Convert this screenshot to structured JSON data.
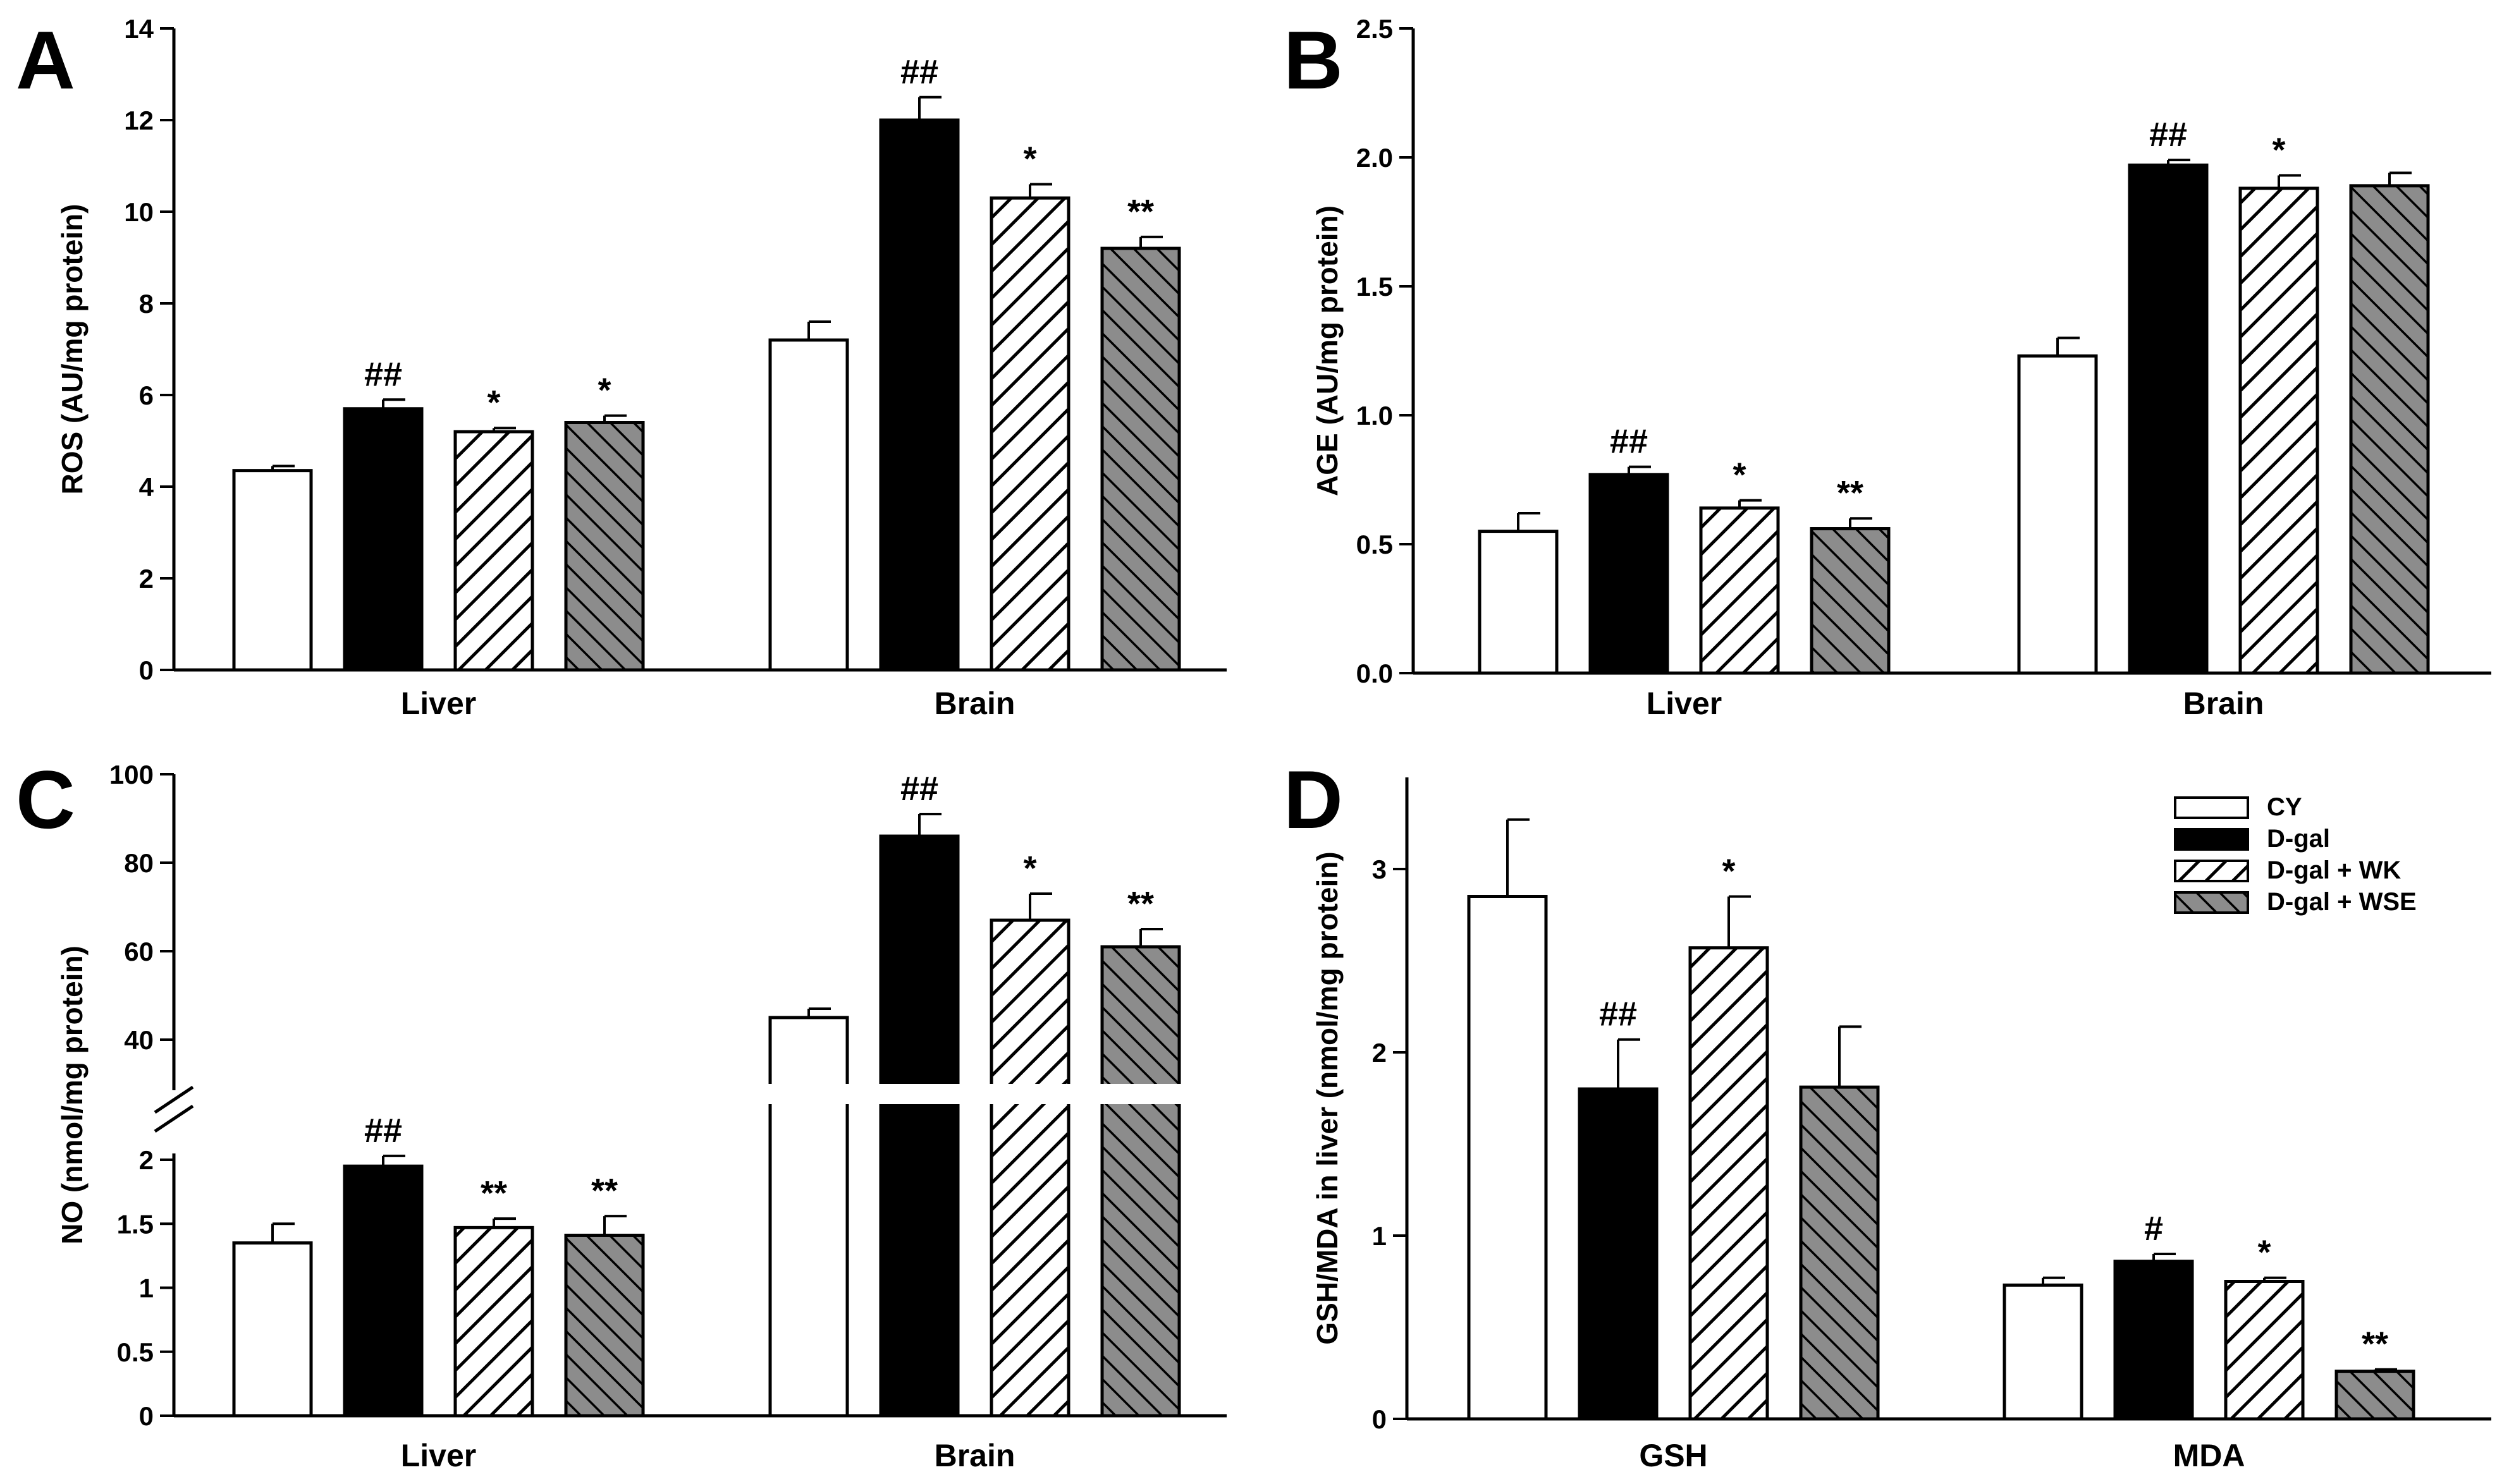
{
  "colors": {
    "cy": "#ffffff",
    "dgal": "#000000",
    "wk_bg": "#ffffff",
    "wse_bg": "#8c8c8c",
    "stroke": "#000000"
  },
  "legend": {
    "items": [
      {
        "label": "CY",
        "group": "cy"
      },
      {
        "label": "D-gal",
        "group": "dgal"
      },
      {
        "label": "D-gal + WK",
        "group": "wk"
      },
      {
        "label": "D-gal + WSE",
        "group": "wse"
      }
    ]
  },
  "chart_data": [
    {
      "panel": "A",
      "type": "bar",
      "categories": [
        "Liver",
        "Brain"
      ],
      "ylabel": "ROS (AU/mg protein)",
      "ylim": [
        0,
        14
      ],
      "yticks": [
        0,
        2,
        4,
        6,
        8,
        10,
        12,
        14
      ],
      "series": [
        {
          "name": "CY",
          "values": [
            4.35,
            7.2
          ],
          "errors": [
            0.1,
            0.4
          ],
          "sig": [
            "",
            ""
          ]
        },
        {
          "name": "D-gal",
          "values": [
            5.7,
            12.0
          ],
          "errors": [
            0.2,
            0.5
          ],
          "sig": [
            "##",
            "##"
          ]
        },
        {
          "name": "D-gal + WK",
          "values": [
            5.2,
            10.3
          ],
          "errors": [
            0.08,
            0.3
          ],
          "sig": [
            "*",
            "*"
          ]
        },
        {
          "name": "D-gal + WSE",
          "values": [
            5.4,
            9.2
          ],
          "errors": [
            0.15,
            0.25
          ],
          "sig": [
            "*",
            "**"
          ]
        }
      ]
    },
    {
      "panel": "B",
      "type": "bar",
      "categories": [
        "Liver",
        "Brain"
      ],
      "ylabel": "AGE (AU/mg protein)",
      "ylim": [
        0,
        2.5
      ],
      "yticks": [
        0.0,
        0.5,
        1.0,
        1.5,
        2.0,
        2.5
      ],
      "ytick_labels": [
        "0.0",
        "0.5",
        "1.0",
        "1.5",
        "2.0",
        "2.5"
      ],
      "series": [
        {
          "name": "CY",
          "values": [
            0.55,
            1.23
          ],
          "errors": [
            0.07,
            0.07
          ],
          "sig": [
            "",
            ""
          ]
        },
        {
          "name": "D-gal",
          "values": [
            0.77,
            1.97
          ],
          "errors": [
            0.03,
            0.02
          ],
          "sig": [
            "##",
            "##"
          ]
        },
        {
          "name": "D-gal + WK",
          "values": [
            0.64,
            1.88
          ],
          "errors": [
            0.03,
            0.05
          ],
          "sig": [
            "*",
            "*"
          ]
        },
        {
          "name": "D-gal + WSE",
          "values": [
            0.56,
            1.89
          ],
          "errors": [
            0.04,
            0.05
          ],
          "sig": [
            "**",
            ""
          ]
        }
      ]
    },
    {
      "panel": "C",
      "type": "bar",
      "categories": [
        "Liver",
        "Brain"
      ],
      "ylabel": "NO (nmol/mg protein)",
      "axis_break": true,
      "lower_ylim": [
        0,
        2.0
      ],
      "lower_yticks": [
        "0",
        "0.5",
        "1",
        "1.5",
        "2"
      ],
      "upper_ylim": [
        30,
        100
      ],
      "upper_yticks": [
        "40",
        "60",
        "80",
        "100"
      ],
      "series": [
        {
          "name": "CY",
          "values": [
            1.35,
            45
          ],
          "errors": [
            0.15,
            2
          ],
          "sig": [
            "",
            ""
          ]
        },
        {
          "name": "D-gal",
          "values": [
            1.95,
            86
          ],
          "errors": [
            0.08,
            5
          ],
          "sig": [
            "##",
            "##"
          ]
        },
        {
          "name": "D-gal + WK",
          "values": [
            1.47,
            67
          ],
          "errors": [
            0.07,
            6
          ],
          "sig": [
            "**",
            "*"
          ]
        },
        {
          "name": "D-gal + WSE",
          "values": [
            1.41,
            61
          ],
          "errors": [
            0.15,
            4
          ],
          "sig": [
            "**",
            "**"
          ]
        }
      ]
    },
    {
      "panel": "D",
      "type": "bar",
      "categories": [
        "GSH",
        "MDA"
      ],
      "ylabel": "GSH/MDA in liver (nmol/mg protein)",
      "ylim": [
        0,
        3.5
      ],
      "yticks": [
        0,
        1,
        2,
        3
      ],
      "series": [
        {
          "name": "CY",
          "values": [
            2.85,
            0.73
          ],
          "errors": [
            0.42,
            0.04
          ],
          "sig": [
            "",
            ""
          ]
        },
        {
          "name": "D-gal",
          "values": [
            1.8,
            0.86
          ],
          "errors": [
            0.27,
            0.04
          ],
          "sig": [
            "##",
            "#"
          ]
        },
        {
          "name": "D-gal + WK",
          "values": [
            2.57,
            0.75
          ],
          "errors": [
            0.28,
            0.02
          ],
          "sig": [
            "*",
            "*"
          ]
        },
        {
          "name": "D-gal + WSE",
          "values": [
            1.81,
            0.26
          ],
          "errors": [
            0.33,
            0.01
          ],
          "sig": [
            "",
            "**"
          ]
        }
      ]
    }
  ]
}
